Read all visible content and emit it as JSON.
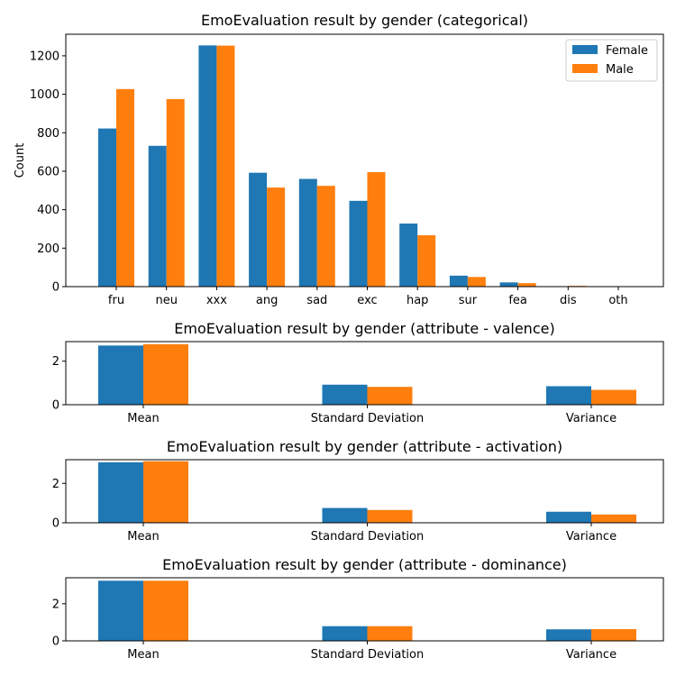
{
  "chart_data": [
    {
      "type": "bar",
      "title": "EmoEvaluation result by gender (categorical)",
      "xlabel": "",
      "ylabel": "Count",
      "ylim": [
        0,
        1312
      ],
      "yticks": [
        0,
        200,
        400,
        600,
        800,
        1000,
        1200
      ],
      "categories": [
        "fru",
        "neu",
        "xxx",
        "ang",
        "sad",
        "exc",
        "hap",
        "sur",
        "fea",
        "dis",
        "oth"
      ],
      "series": [
        {
          "name": "Female",
          "values": [
            822,
            732,
            1254,
            592,
            560,
            446,
            328,
            57,
            22,
            2,
            1
          ]
        },
        {
          "name": "Male",
          "values": [
            1027,
            975,
            1253,
            515,
            524,
            595,
            267,
            50,
            18,
            4,
            2
          ]
        }
      ],
      "legend": "top-right",
      "grid": false
    },
    {
      "type": "bar",
      "title": "EmoEvaluation result by gender (attribute - valence)",
      "xlabel": "",
      "ylabel": "",
      "ylim": [
        0,
        2.9
      ],
      "yticks": [
        0,
        2
      ],
      "categories": [
        "Mean",
        "Standard Deviation",
        "Variance"
      ],
      "series": [
        {
          "name": "Female",
          "values": [
            2.72,
            0.92,
            0.85
          ]
        },
        {
          "name": "Male",
          "values": [
            2.78,
            0.82,
            0.68
          ]
        }
      ],
      "grid": false
    },
    {
      "type": "bar",
      "title": "EmoEvaluation result by gender (attribute - activation)",
      "xlabel": "",
      "ylabel": "",
      "ylim": [
        0,
        3.2
      ],
      "yticks": [
        0,
        2
      ],
      "categories": [
        "Mean",
        "Standard Deviation",
        "Variance"
      ],
      "series": [
        {
          "name": "Female",
          "values": [
            3.07,
            0.75,
            0.56
          ]
        },
        {
          "name": "Male",
          "values": [
            3.12,
            0.65,
            0.42
          ]
        }
      ],
      "grid": false
    },
    {
      "type": "bar",
      "title": "EmoEvaluation result by gender (attribute - dominance)",
      "xlabel": "",
      "ylabel": "",
      "ylim": [
        0,
        3.4
      ],
      "yticks": [
        0,
        2
      ],
      "categories": [
        "Mean",
        "Standard Deviation",
        "Variance"
      ],
      "series": [
        {
          "name": "Female",
          "values": [
            3.24,
            0.79,
            0.62
          ]
        },
        {
          "name": "Male",
          "values": [
            3.24,
            0.79,
            0.63
          ]
        }
      ],
      "grid": false
    }
  ],
  "colors": {
    "Female": "#1f77b4",
    "Male": "#ff7f0e"
  }
}
